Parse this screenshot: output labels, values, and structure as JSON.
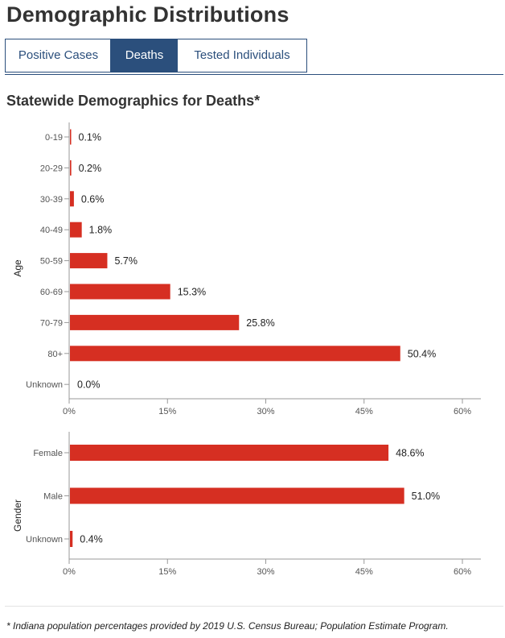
{
  "page_title": "Demographic Distributions",
  "tabs": [
    {
      "label": "Positive Cases",
      "active": false
    },
    {
      "label": "Deaths",
      "active": true
    },
    {
      "label": "Tested Individuals",
      "active": false
    }
  ],
  "section_title": "Statewide Demographics for Deaths*",
  "bar_color": "#d62f22",
  "chart_data": [
    {
      "type": "bar",
      "orientation": "horizontal",
      "ylabel": "Age",
      "categories": [
        "0-19",
        "20-29",
        "30-39",
        "40-49",
        "50-59",
        "60-69",
        "70-79",
        "80+",
        "Unknown"
      ],
      "values": [
        0.1,
        0.2,
        0.6,
        1.8,
        5.7,
        15.3,
        25.8,
        50.4,
        0.0
      ],
      "value_labels": [
        "0.1%",
        "0.2%",
        "0.6%",
        "1.8%",
        "5.7%",
        "15.3%",
        "25.8%",
        "50.4%",
        "0.0%"
      ],
      "xlim": [
        0,
        60
      ],
      "xticks": [
        0,
        15,
        30,
        45,
        60
      ],
      "xtick_labels": [
        "0%",
        "15%",
        "30%",
        "45%",
        "60%"
      ]
    },
    {
      "type": "bar",
      "orientation": "horizontal",
      "ylabel": "Gender",
      "categories": [
        "Female",
        "Male",
        "Unknown"
      ],
      "values": [
        48.6,
        51.0,
        0.4
      ],
      "value_labels": [
        "48.6%",
        "51.0%",
        "0.4%"
      ],
      "xlim": [
        0,
        60
      ],
      "xticks": [
        0,
        15,
        30,
        45,
        60
      ],
      "xtick_labels": [
        "0%",
        "15%",
        "30%",
        "45%",
        "60%"
      ]
    }
  ],
  "footnote": "* Indiana population percentages provided by 2019 U.S. Census Bureau; Population Estimate Program."
}
